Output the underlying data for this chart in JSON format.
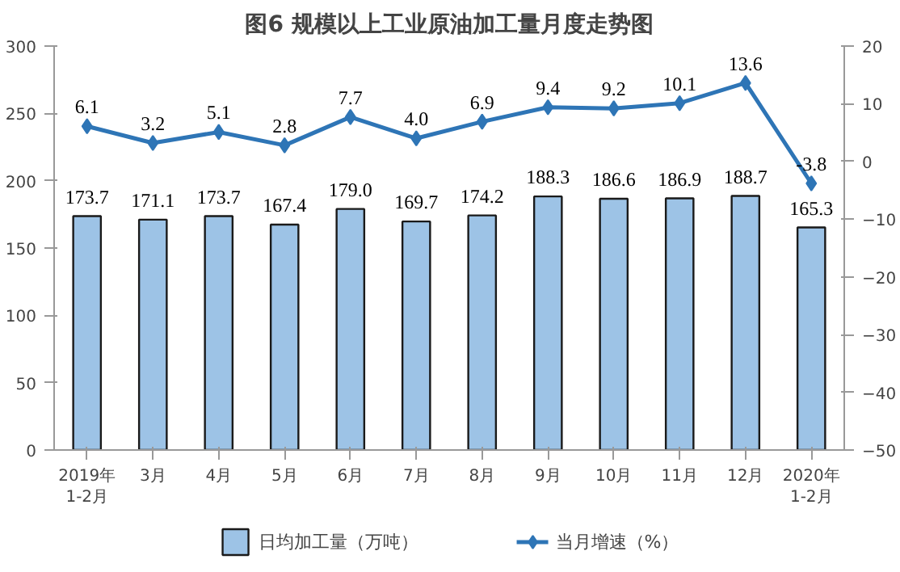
{
  "chart_data": {
    "type": "bar",
    "title": "图6 规模以上工业原油加工量月度走势图",
    "categories": [
      "2019年\n1-2月",
      "3月",
      "4月",
      "5月",
      "6月",
      "7月",
      "8月",
      "9月",
      "10月",
      "11月",
      "12月",
      "2020年\n1-2月"
    ],
    "series": [
      {
        "name": "日均加工量（万吨）",
        "color": "#9dc3e6",
        "values": [
          173.7,
          171.1,
          173.7,
          167.4,
          179.0,
          169.7,
          174.2,
          188.3,
          186.6,
          186.9,
          188.7,
          165.3
        ],
        "value_labels": [
          "173.7",
          "171.1",
          "173.7",
          "167.4",
          "179.0",
          "169.7",
          "174.2",
          "188.3",
          "186.6",
          "186.9",
          "188.7",
          "165.3"
        ]
      },
      {
        "name": "当月增速（%）",
        "type": "line",
        "axis": "y2",
        "color": "#2e75b6",
        "marker": "diamond",
        "values": [
          6.1,
          3.2,
          5.1,
          2.8,
          7.7,
          4.0,
          6.9,
          9.4,
          9.2,
          10.1,
          13.6,
          -3.8
        ],
        "value_labels": [
          "6.1",
          "3.2",
          "5.1",
          "2.8",
          "7.7",
          "4.0",
          "6.9",
          "9.4",
          "9.2",
          "10.1",
          "13.6",
          "-3.8"
        ]
      }
    ],
    "ylim": [
      0,
      300
    ],
    "yticks": [
      0,
      50,
      100,
      150,
      200,
      250,
      300
    ],
    "y2lim": [
      -50,
      20
    ],
    "y2ticks": [
      -50,
      -40,
      -30,
      -20,
      -10,
      0,
      10,
      20
    ],
    "grid": false,
    "legend": "bottom"
  }
}
